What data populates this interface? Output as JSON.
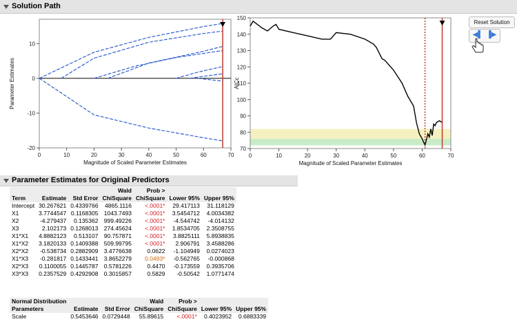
{
  "header": {
    "title": "Solution Path"
  },
  "controls": {
    "reset_label": "Reset Solution",
    "step_back": "◀▌",
    "step_fwd": "▐▶"
  },
  "colors": {
    "path": "#2f5fd0",
    "cursor": "#c0392b",
    "band_yellow": "#f5f0c0",
    "band_green": "#c8ecc8"
  },
  "left_plot": {
    "xlabel": "Magnitude of Scaled Parameter Estimates",
    "ylabel": "Parameter Estimates",
    "xticks": [
      "0",
      "10",
      "20",
      "30",
      "40",
      "50",
      "60",
      "70"
    ],
    "yticks": [
      "10",
      "0",
      "-10",
      "-20"
    ]
  },
  "right_plot": {
    "xlabel": "Magnitude of Scaled Parameter Estimates",
    "ylabel": "AICc",
    "xticks": [
      "0",
      "10",
      "20",
      "30",
      "40",
      "50",
      "60",
      "70"
    ],
    "yticks": [
      "150",
      "140",
      "130",
      "120",
      "110",
      "100",
      "90",
      "80",
      "70"
    ]
  },
  "chart_data": [
    {
      "type": "line",
      "title": "",
      "xlabel": "Magnitude of Scaled Parameter Estimates",
      "ylabel": "Parameter Estimates",
      "xlim": [
        0,
        70
      ],
      "ylim": [
        -20,
        17
      ],
      "grid": false,
      "cursor_x": 67,
      "series": [
        {
          "x": [
            0,
            20,
            40,
            60,
            67
          ],
          "y": [
            0,
            7.5,
            11.8,
            14.9,
            15.8
          ]
        },
        {
          "x": [
            8,
            20,
            40,
            60,
            67
          ],
          "y": [
            0,
            5.8,
            10.4,
            12.9,
            13.6
          ]
        },
        {
          "x": [
            25,
            40,
            60,
            67
          ],
          "y": [
            0,
            4.4,
            7.8,
            9.2
          ]
        },
        {
          "x": [
            20,
            35,
            50,
            67
          ],
          "y": [
            0,
            3.5,
            6.0,
            8.0
          ]
        },
        {
          "x": [
            50,
            58,
            67
          ],
          "y": [
            0,
            1.8,
            3.4
          ]
        },
        {
          "x": [
            55,
            62,
            67
          ],
          "y": [
            0,
            0.8,
            1.3
          ]
        },
        {
          "x": [
            0,
            20,
            40,
            60,
            67
          ],
          "y": [
            0,
            -10.5,
            -14.3,
            -17.1,
            -18.0
          ]
        },
        {
          "x": [
            58,
            67
          ],
          "y": [
            0,
            -0.8
          ]
        }
      ]
    },
    {
      "type": "line",
      "title": "",
      "xlabel": "Magnitude of Scaled Parameter Estimates",
      "ylabel": "AICc",
      "xlim": [
        0,
        70
      ],
      "ylim": [
        70,
        150
      ],
      "grid": false,
      "bands": [
        {
          "y0": 72,
          "y1": 76,
          "color": "green"
        },
        {
          "y0": 76,
          "y1": 82,
          "color": "yellow"
        }
      ],
      "cursor_x": 67,
      "best_x": 61,
      "series": [
        {
          "x": [
            0,
            1,
            4,
            6,
            8,
            9,
            10,
            15,
            20,
            25,
            28,
            30,
            35,
            40,
            43,
            44,
            46,
            47,
            50,
            53,
            55,
            57,
            58,
            59,
            60,
            61,
            62,
            62.5,
            63,
            63.5,
            64,
            64.5,
            65,
            66,
            67
          ],
          "y": [
            145,
            148,
            144,
            142,
            145,
            146,
            143,
            141,
            139,
            137,
            137,
            141,
            140,
            137,
            134,
            132,
            125,
            124,
            118,
            110,
            102,
            96,
            86,
            79,
            76,
            72,
            79,
            77,
            82,
            78,
            85,
            84,
            86,
            87,
            86
          ]
        }
      ]
    }
  ],
  "section2": {
    "title": "Parameter Estimates for Original Predictors"
  },
  "estimates": {
    "headers1": [
      "",
      "",
      "",
      "Wald",
      "Prob >",
      "",
      ""
    ],
    "headers2": [
      "Term",
      "Estimate",
      "Std Error",
      "ChiSquare",
      "ChiSquare",
      "Lower 95%",
      "Upper 95%"
    ],
    "rows": [
      [
        "Intercept",
        "30.267621",
        "0.4339766",
        "4865.1116",
        "<.0001*",
        "29.417113",
        "31.118129"
      ],
      [
        "X1",
        "3.7744547",
        "0.1168305",
        "1043.7493",
        "<.0001*",
        "3.5454712",
        "4.0034382"
      ],
      [
        "X2",
        "-4.279437",
        "0.135362",
        "999.49226",
        "<.0001*",
        "-4.544742",
        "-4.014132"
      ],
      [
        "X3",
        "2.102173",
        "0.1268013",
        "274.45624",
        "<.0001*",
        "1.8534705",
        "2.3508755"
      ],
      [
        "X1*X1",
        "4.8882123",
        "0.513107",
        "90.757871",
        "<.0001*",
        "3.8825111",
        "5.8938835"
      ],
      [
        "X1*X2",
        "3.1820133",
        "0.1409388",
        "509.99795",
        "<.0001*",
        "2.906791",
        "3.4588286"
      ],
      [
        "X2*X2",
        "-0.538734",
        "0.2882909",
        "3.4776638",
        "0.0622",
        "-1.104949",
        "0.0274023"
      ],
      [
        "X1*X3",
        "-0.281817",
        "0.1433441",
        "3.8652279",
        "0.0493*",
        "-0.562765",
        "-0.000868"
      ],
      [
        "X2*X3",
        "0.1100055",
        "0.1445787",
        "0.5781226",
        "0.4470",
        "-0.173559",
        "0.3935706"
      ],
      [
        "X3*X3",
        "0.2357529",
        "0.4292908",
        "0.3015857",
        "0.5829",
        "-0.50542",
        "1.0771474"
      ]
    ]
  },
  "distribution": {
    "headers1": [
      "Normal Distribution",
      "",
      "",
      "Wald",
      "Prob >",
      "",
      ""
    ],
    "headers2": [
      "Parameters",
      "Estimate",
      "Std Error",
      "ChiSquare",
      "ChiSquare",
      "Lower 95%",
      "Upper 95%"
    ],
    "rows": [
      [
        "Scale",
        "0.5453646",
        "0.0729448",
        "55.89615",
        "<.0001*",
        "0.4023952",
        "0.6883339"
      ]
    ]
  }
}
